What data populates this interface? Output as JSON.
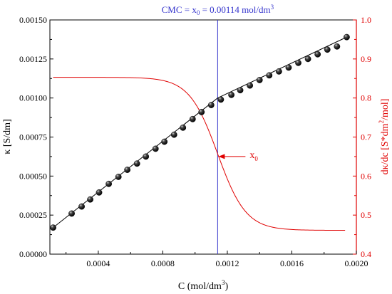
{
  "chart_data": {
    "type": "scatter",
    "xlabel_main": "C (mol/dm",
    "xlabel_sup": "3",
    "xlabel_close": ")",
    "ylabel_left": "κ [S/dm]",
    "ylabel_right_main": "dκ/dc [S*dm",
    "ylabel_right_sup": "2",
    "ylabel_right_close": "/mol]",
    "xlim": [
      0.0001,
      0.002
    ],
    "ylim_left": [
      0.0,
      0.0015
    ],
    "ylim_right": [
      0.4,
      1.0
    ],
    "x_ticks": [
      0.0004,
      0.0008,
      0.0012,
      0.0016,
      0.002
    ],
    "x_tick_labels": [
      "0.0004",
      "0.0008",
      "0.0012",
      "0.0016",
      "0.0020"
    ],
    "y_left_ticks": [
      0.0,
      0.00025,
      0.0005,
      0.00075,
      0.001,
      0.00125,
      0.0015
    ],
    "y_left_tick_labels": [
      "0.00000",
      "0.00025",
      "0.00050",
      "0.00075",
      "0.00100",
      "0.00125",
      "0.00150"
    ],
    "y_right_ticks": [
      0.4,
      0.5,
      0.6,
      0.7,
      0.8,
      0.9,
      1.0
    ],
    "y_right_tick_labels": [
      "0.4",
      "0.5",
      "0.6",
      "0.7",
      "0.8",
      "0.9",
      "1.0"
    ],
    "cmc": {
      "x": 0.00114,
      "label_pre": "CMC = x",
      "label_sub": "0",
      "label_post": " = 0.00114 mol/dm",
      "label_sup": "3"
    },
    "marker": {
      "label_main": "x",
      "label_sub": "0",
      "y_right": 0.65
    },
    "series": [
      {
        "axis": "left",
        "kind": "points",
        "x": [
          0.00012,
          0.000235,
          0.00035,
          0.000465,
          0.00058,
          0.000695,
          0.00081,
          0.000925,
          0.00104,
          0.00116,
          0.00128,
          0.0014,
          0.00152,
          0.00164,
          0.00176,
          0.00188,
          0.000297,
          0.000405,
          0.000525,
          0.00064,
          0.000755,
          0.00087,
          0.000985,
          0.0011,
          0.001225,
          0.00134,
          0.00146,
          0.00158,
          0.0017,
          0.00182,
          0.00194
        ],
        "y": [
          0.00017,
          0.00026,
          0.00035,
          0.00045,
          0.00054,
          0.000625,
          0.00072,
          0.00081,
          0.00091,
          0.00099,
          0.00105,
          0.001115,
          0.00117,
          0.001225,
          0.00128,
          0.00133,
          0.000305,
          0.000395,
          0.000495,
          0.00058,
          0.000675,
          0.000765,
          0.000865,
          0.000955,
          0.00102,
          0.00108,
          0.001145,
          0.001195,
          0.00125,
          0.00131,
          0.00139
        ]
      },
      {
        "axis": "left",
        "kind": "line",
        "x": [
          0.00012,
          0.00114,
          0.00194
        ],
        "y": [
          0.00017,
          0.001,
          0.00139
        ]
      },
      {
        "axis": "right",
        "kind": "sigmoid",
        "x_start": 0.00012,
        "x_end": 0.00193,
        "y_high": 0.853,
        "y_low": 0.461,
        "x0": 0.00114,
        "width": 8.8e-05
      }
    ],
    "colors": {
      "left_axis": "#000000",
      "right_axis": "#e00000",
      "cmc_line": "#3333cc",
      "points": "#111111"
    }
  }
}
